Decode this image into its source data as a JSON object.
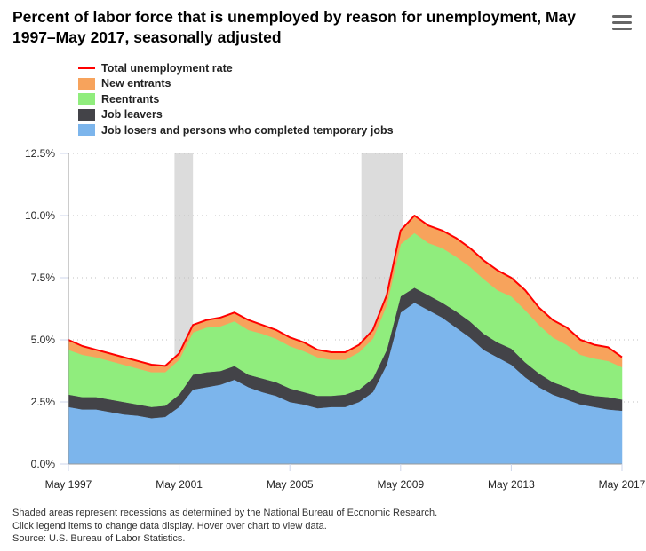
{
  "header": {
    "title": "Percent of labor force that is unemployed by reason for unemployment, May 1997–May 2017, seasonally adjusted",
    "menu_icon": "hamburger-menu-icon"
  },
  "footnotes": [
    "Shaded areas represent recessions as determined by the National Bureau of Economic Research.",
    "Click legend items to change data display. Hover over chart to view data.",
    "Source: U.S. Bureau of Labor Statistics."
  ],
  "chart_data": {
    "type": "area",
    "stacked": true,
    "title": "Percent of labor force that is unemployed by reason for unemployment, May 1997–May 2017, seasonally adjusted",
    "xlabel": "",
    "ylabel": "",
    "ylim": [
      0,
      12.5
    ],
    "y_ticks": [
      "0.0%",
      "2.5%",
      "5.0%",
      "7.5%",
      "10.0%",
      "12.5%"
    ],
    "x_ticks": [
      "May 1997",
      "May 2001",
      "May 2005",
      "May 2009",
      "May 2013",
      "May 2017"
    ],
    "grid": true,
    "legend_position": "top-left",
    "recessions": [
      [
        "Mar 2001",
        "Nov 2001"
      ],
      [
        "Dec 2007",
        "Jun 2009"
      ]
    ],
    "x": [
      "May 1997",
      "Nov 1997",
      "May 1998",
      "Nov 1998",
      "May 1999",
      "Nov 1999",
      "May 2000",
      "Nov 2000",
      "May 2001",
      "Nov 2001",
      "May 2002",
      "Nov 2002",
      "May 2003",
      "Nov 2003",
      "May 2004",
      "Nov 2004",
      "May 2005",
      "Nov 2005",
      "May 2006",
      "Nov 2006",
      "May 2007",
      "Nov 2007",
      "May 2008",
      "Nov 2008",
      "May 2009",
      "Nov 2009",
      "May 2010",
      "Nov 2010",
      "May 2011",
      "Nov 2011",
      "May 2012",
      "Nov 2012",
      "May 2013",
      "Nov 2013",
      "May 2014",
      "Nov 2014",
      "May 2015",
      "Nov 2015",
      "May 2016",
      "Nov 2016",
      "May 2017"
    ],
    "series": [
      {
        "name": "Job losers and persons who completed temporary jobs",
        "color": "#7cb5ec",
        "values": [
          2.3,
          2.2,
          2.2,
          2.1,
          2.0,
          1.95,
          1.85,
          1.9,
          2.3,
          3.0,
          3.1,
          3.2,
          3.4,
          3.1,
          2.9,
          2.75,
          2.5,
          2.4,
          2.25,
          2.3,
          2.3,
          2.5,
          2.9,
          4.0,
          6.1,
          6.5,
          6.2,
          5.9,
          5.5,
          5.1,
          4.6,
          4.3,
          4.0,
          3.5,
          3.1,
          2.8,
          2.6,
          2.4,
          2.3,
          2.2,
          2.15
        ]
      },
      {
        "name": "Job leavers",
        "color": "#434348",
        "values": [
          0.5,
          0.5,
          0.5,
          0.5,
          0.5,
          0.45,
          0.45,
          0.45,
          0.5,
          0.6,
          0.6,
          0.55,
          0.55,
          0.5,
          0.55,
          0.55,
          0.55,
          0.5,
          0.5,
          0.45,
          0.5,
          0.5,
          0.55,
          0.6,
          0.65,
          0.6,
          0.6,
          0.6,
          0.65,
          0.65,
          0.65,
          0.6,
          0.65,
          0.6,
          0.55,
          0.5,
          0.5,
          0.45,
          0.45,
          0.5,
          0.45
        ]
      },
      {
        "name": "Reentrants",
        "color": "#90ed7d",
        "values": [
          1.8,
          1.7,
          1.6,
          1.55,
          1.5,
          1.45,
          1.4,
          1.35,
          1.4,
          1.7,
          1.8,
          1.8,
          1.8,
          1.8,
          1.8,
          1.75,
          1.7,
          1.65,
          1.55,
          1.45,
          1.4,
          1.5,
          1.6,
          1.8,
          2.1,
          2.2,
          2.1,
          2.2,
          2.2,
          2.2,
          2.2,
          2.1,
          2.1,
          2.1,
          1.95,
          1.8,
          1.7,
          1.55,
          1.5,
          1.45,
          1.3
        ]
      },
      {
        "name": "New entrants",
        "color": "#f7a35c",
        "values": [
          0.4,
          0.35,
          0.3,
          0.3,
          0.3,
          0.3,
          0.3,
          0.25,
          0.25,
          0.3,
          0.3,
          0.35,
          0.35,
          0.4,
          0.35,
          0.35,
          0.35,
          0.35,
          0.3,
          0.3,
          0.3,
          0.3,
          0.35,
          0.4,
          0.55,
          0.7,
          0.7,
          0.7,
          0.75,
          0.75,
          0.75,
          0.8,
          0.75,
          0.8,
          0.7,
          0.7,
          0.7,
          0.6,
          0.55,
          0.55,
          0.4
        ]
      }
    ],
    "total": {
      "name": "Total unemployment rate",
      "color": "#ff0000",
      "values": [
        5.0,
        4.75,
        4.6,
        4.45,
        4.3,
        4.15,
        4.0,
        3.95,
        4.45,
        5.6,
        5.8,
        5.9,
        6.1,
        5.8,
        5.6,
        5.4,
        5.1,
        4.9,
        4.6,
        4.5,
        4.5,
        4.8,
        5.4,
        6.8,
        9.4,
        10.0,
        9.6,
        9.4,
        9.1,
        8.7,
        8.2,
        7.8,
        7.5,
        7.0,
        6.3,
        5.8,
        5.5,
        5.0,
        4.8,
        4.7,
        4.3
      ]
    }
  },
  "legend": [
    {
      "label": "Total unemployment rate",
      "color": "#ff0000",
      "kind": "line"
    },
    {
      "label": "New entrants",
      "color": "#f7a35c",
      "kind": "area"
    },
    {
      "label": "Reentrants",
      "color": "#90ed7d",
      "kind": "area"
    },
    {
      "label": "Job leavers",
      "color": "#434348",
      "kind": "area"
    },
    {
      "label": "Job losers and persons who completed temporary jobs",
      "color": "#7cb5ec",
      "kind": "area"
    }
  ]
}
